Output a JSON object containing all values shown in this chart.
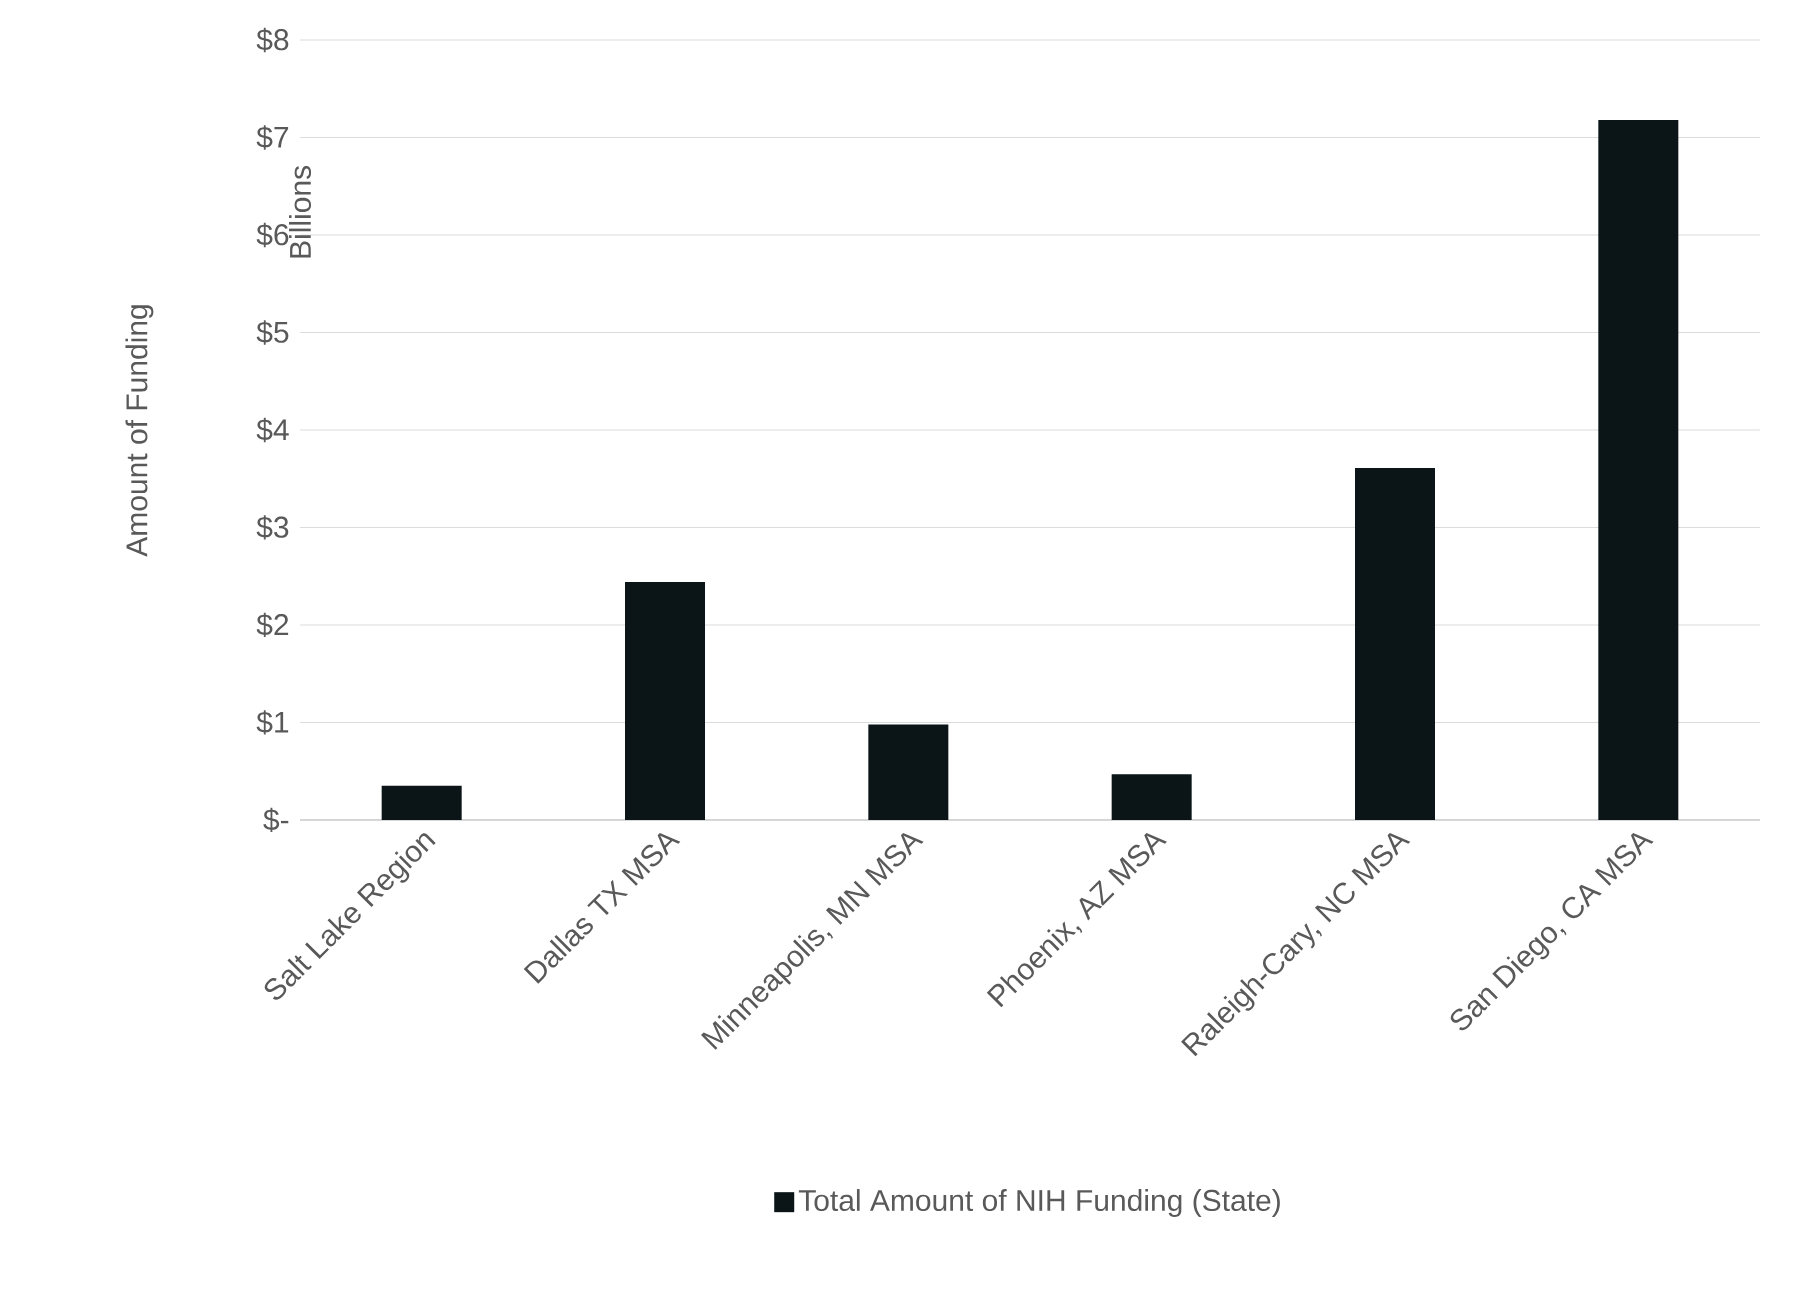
{
  "chart_data": {
    "type": "bar",
    "ylabel": "Amount of Funding",
    "annotations": [
      "Billions"
    ],
    "categories": [
      "Salt Lake Region",
      "Dallas TX MSA",
      "Minneapolis, MN MSA",
      "Phoenix, AZ MSA",
      "Raleigh-Cary, NC MSA",
      "San Diego, CA MSA"
    ],
    "series": [
      {
        "name": "Total Amount of NIH Funding (State)",
        "color": "#0b1417",
        "values": [
          0.35,
          2.44,
          0.98,
          0.47,
          3.61,
          7.18
        ]
      }
    ],
    "ylim": [
      0,
      8
    ],
    "yticks": [
      {
        "value": 0,
        "label": "$-"
      },
      {
        "value": 1,
        "label": "$1"
      },
      {
        "value": 2,
        "label": "$2"
      },
      {
        "value": 3,
        "label": "$3"
      },
      {
        "value": 4,
        "label": "$4"
      },
      {
        "value": 5,
        "label": "$5"
      },
      {
        "value": 6,
        "label": "$6"
      },
      {
        "value": 7,
        "label": "$7"
      },
      {
        "value": 8,
        "label": "$8"
      }
    ],
    "grid": "y",
    "legend": "bottom"
  }
}
